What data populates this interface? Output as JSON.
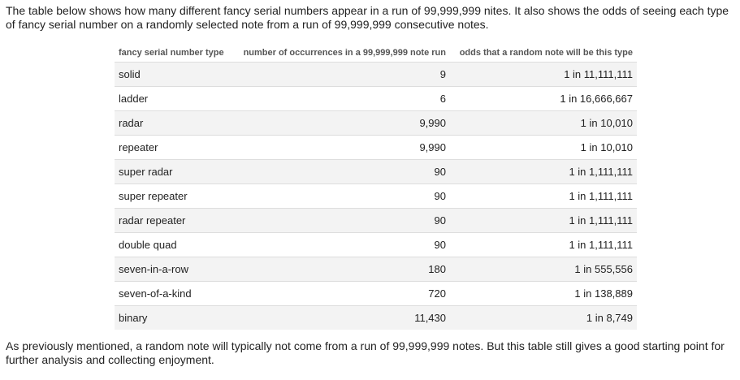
{
  "intro_text": "The table below shows how many different fancy serial numbers appear in a run of 99,999,999 nites. It also shows the odds of seeing each type of fancy serial number on a randomly selected note from a run of 99,999,999 consecutive notes.",
  "table": {
    "headers": {
      "type": "fancy serial number type",
      "occurrences": "number of occurrences in a 99,999,999 note run",
      "odds": "odds that a random note will be this type"
    },
    "rows": [
      {
        "type": "solid",
        "occurrences": "9",
        "odds": "1 in 11,111,111"
      },
      {
        "type": "ladder",
        "occurrences": "6",
        "odds": "1 in 16,666,667"
      },
      {
        "type": "radar",
        "occurrences": "9,990",
        "odds": "1 in 10,010"
      },
      {
        "type": "repeater",
        "occurrences": "9,990",
        "odds": "1 in 10,010"
      },
      {
        "type": "super radar",
        "occurrences": "90",
        "odds": "1 in 1,111,111"
      },
      {
        "type": "super repeater",
        "occurrences": "90",
        "odds": "1 in 1,111,111"
      },
      {
        "type": "radar repeater",
        "occurrences": "90",
        "odds": "1 in 1,111,111"
      },
      {
        "type": "double quad",
        "occurrences": "90",
        "odds": "1 in 1,111,111"
      },
      {
        "type": "seven-in-a-row",
        "occurrences": "180",
        "odds": "1 in 555,556"
      },
      {
        "type": "seven-of-a-kind",
        "occurrences": "720",
        "odds": "1 in 138,889"
      },
      {
        "type": "binary",
        "occurrences": "11,430",
        "odds": "1 in 8,749"
      }
    ]
  },
  "outro_text": "As previously mentioned, a random note will typically not come from a run of 99,999,999 notes. But this table still gives a good starting point for further analysis and collecting enjoyment."
}
